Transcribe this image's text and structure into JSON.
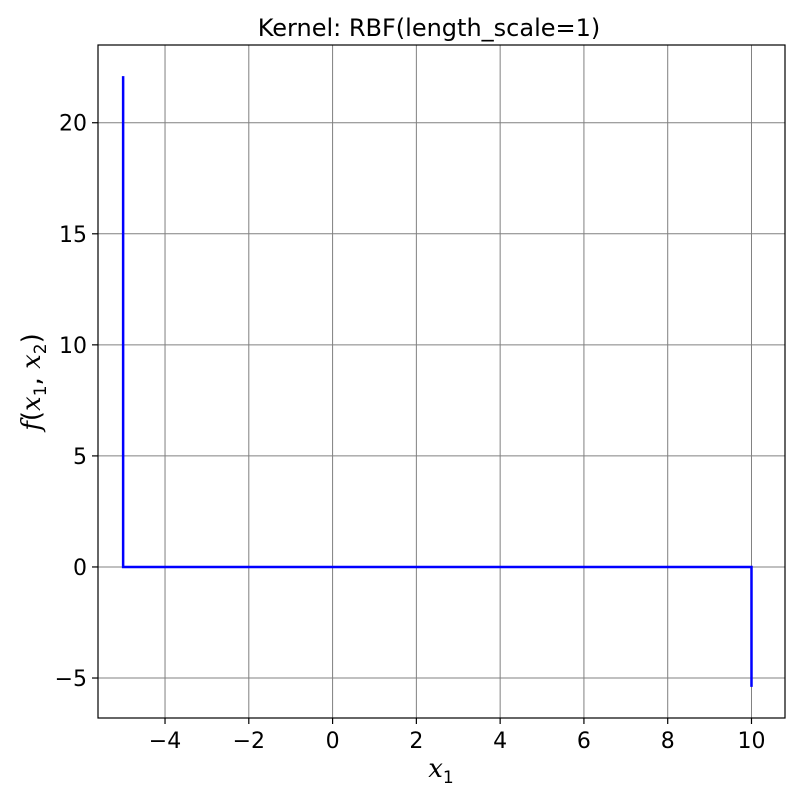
{
  "chart_data": {
    "type": "line",
    "title": "Kernel: RBF(length_scale=1)",
    "xlabel": {
      "main": "x",
      "sub": "1"
    },
    "ylabel": {
      "f": "f",
      "open": "(",
      "x1": "x",
      "sub1": "1",
      "comma": ", ",
      "x2": "x",
      "sub2": "2",
      "close": ")"
    },
    "xlim": [
      -5.6,
      10.8
    ],
    "ylim": [
      -6.8,
      23.5
    ],
    "xticks": [
      -4,
      -2,
      0,
      2,
      4,
      6,
      8,
      10
    ],
    "xtick_labels": [
      "−4",
      "−2",
      "0",
      "2",
      "4",
      "6",
      "8",
      "10"
    ],
    "yticks": [
      -5,
      0,
      5,
      10,
      15,
      20
    ],
    "ytick_labels": [
      "−5",
      "0",
      "5",
      "10",
      "15",
      "20"
    ],
    "grid": true,
    "series": [
      {
        "color": "#0000ff",
        "x": [
          -5,
          -5,
          10,
          10
        ],
        "y": [
          22.1,
          0,
          0,
          -5.4
        ]
      }
    ]
  }
}
